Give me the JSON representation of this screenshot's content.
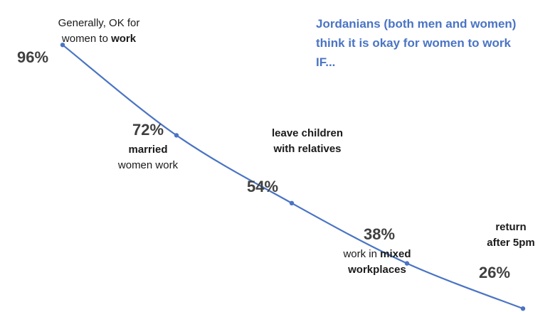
{
  "chart_data": {
    "type": "line",
    "categories": [
      "Generally, OK for women to work",
      "married women work",
      "leave children with relatives",
      "work in mixed workplaces",
      "return after 5pm"
    ],
    "values": [
      96,
      72,
      54,
      38,
      26
    ],
    "value_labels": [
      "96%",
      "72%",
      "54%",
      "38%",
      "26%"
    ],
    "point_captions": [
      [
        [
          {
            "t": "Generally, OK for",
            "b": false
          }
        ],
        [
          {
            "t": "women to ",
            "b": false
          },
          {
            "t": "work",
            "b": true
          }
        ]
      ],
      [
        [
          {
            "t": "married",
            "b": true
          }
        ],
        [
          {
            "t": "women work",
            "b": false
          }
        ]
      ],
      [
        [
          {
            "t": "leave children",
            "b": true
          }
        ],
        [
          {
            "t": "with relatives",
            "b": true
          }
        ]
      ],
      [
        [
          {
            "t": "work in ",
            "b": false
          },
          {
            "t": "mixed",
            "b": true
          }
        ],
        [
          {
            "t": "workplaces",
            "b": true
          }
        ]
      ],
      [
        [
          {
            "t": "return",
            "b": true
          }
        ],
        [
          {
            "t": "after 5pm",
            "b": true
          }
        ]
      ]
    ],
    "annotation": [
      "Jordanians (both men and women)",
      "think it is okay for women to work",
      "IF..."
    ],
    "title": "",
    "xlabel": "",
    "ylabel": "",
    "ylim": [
      20,
      100
    ],
    "grid": false,
    "legend": "none",
    "colors": {
      "line": "#4a74c4",
      "annotation": "#4a74c4",
      "value_label": "#404040"
    }
  }
}
